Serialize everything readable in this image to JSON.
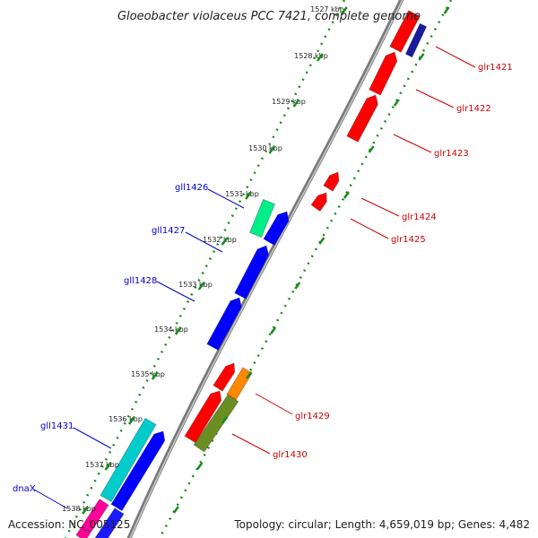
{
  "title": "Gloeobacter violaceus PCC 7421, complete genome",
  "footer": {
    "accession": "Accession: NC_005125",
    "summary": "Topology: circular; Length: 4,659,019 bp; Genes: 4,482"
  },
  "colors": {
    "forward_label": "#0000cc",
    "reverse_label": "#cc0000",
    "tick": "#1a8a1a",
    "backbone": "#888888"
  },
  "kbp_labels": [
    "1527 kbp",
    "1528 kbp",
    "1529 kbp",
    "1530 kbp",
    "1531 kbp",
    "1532 kbp",
    "1533 kbp",
    "1534 kbp",
    "1535 kbp",
    "1536 kbp",
    "1537 kbp",
    "1538 kbp"
  ],
  "genes": [
    {
      "name": "glr1421",
      "strand": "reverse",
      "color": "#ff0000"
    },
    {
      "name": "glr1422",
      "strand": "reverse",
      "color": "#ff0000"
    },
    {
      "name": "glr1423",
      "strand": "reverse",
      "color": "#ff0000"
    },
    {
      "name": "glr1424",
      "strand": "reverse",
      "color": "#ff0000"
    },
    {
      "name": "glr1425",
      "strand": "reverse",
      "color": "#ff0000"
    },
    {
      "name": "gll1426",
      "strand": "forward",
      "color": "#00ee88"
    },
    {
      "name": "gll1427",
      "strand": "forward",
      "color": "#0000ff"
    },
    {
      "name": "gll1428",
      "strand": "forward",
      "color": "#0000ff"
    },
    {
      "name": "glr1429",
      "strand": "reverse",
      "color": "#ff8800"
    },
    {
      "name": "glr1430",
      "strand": "reverse",
      "color": "#6b8e23"
    },
    {
      "name": "gll1431",
      "strand": "forward",
      "color": "#00cccc"
    },
    {
      "name": "dnaX",
      "strand": "forward",
      "color": "#ff0099"
    }
  ]
}
